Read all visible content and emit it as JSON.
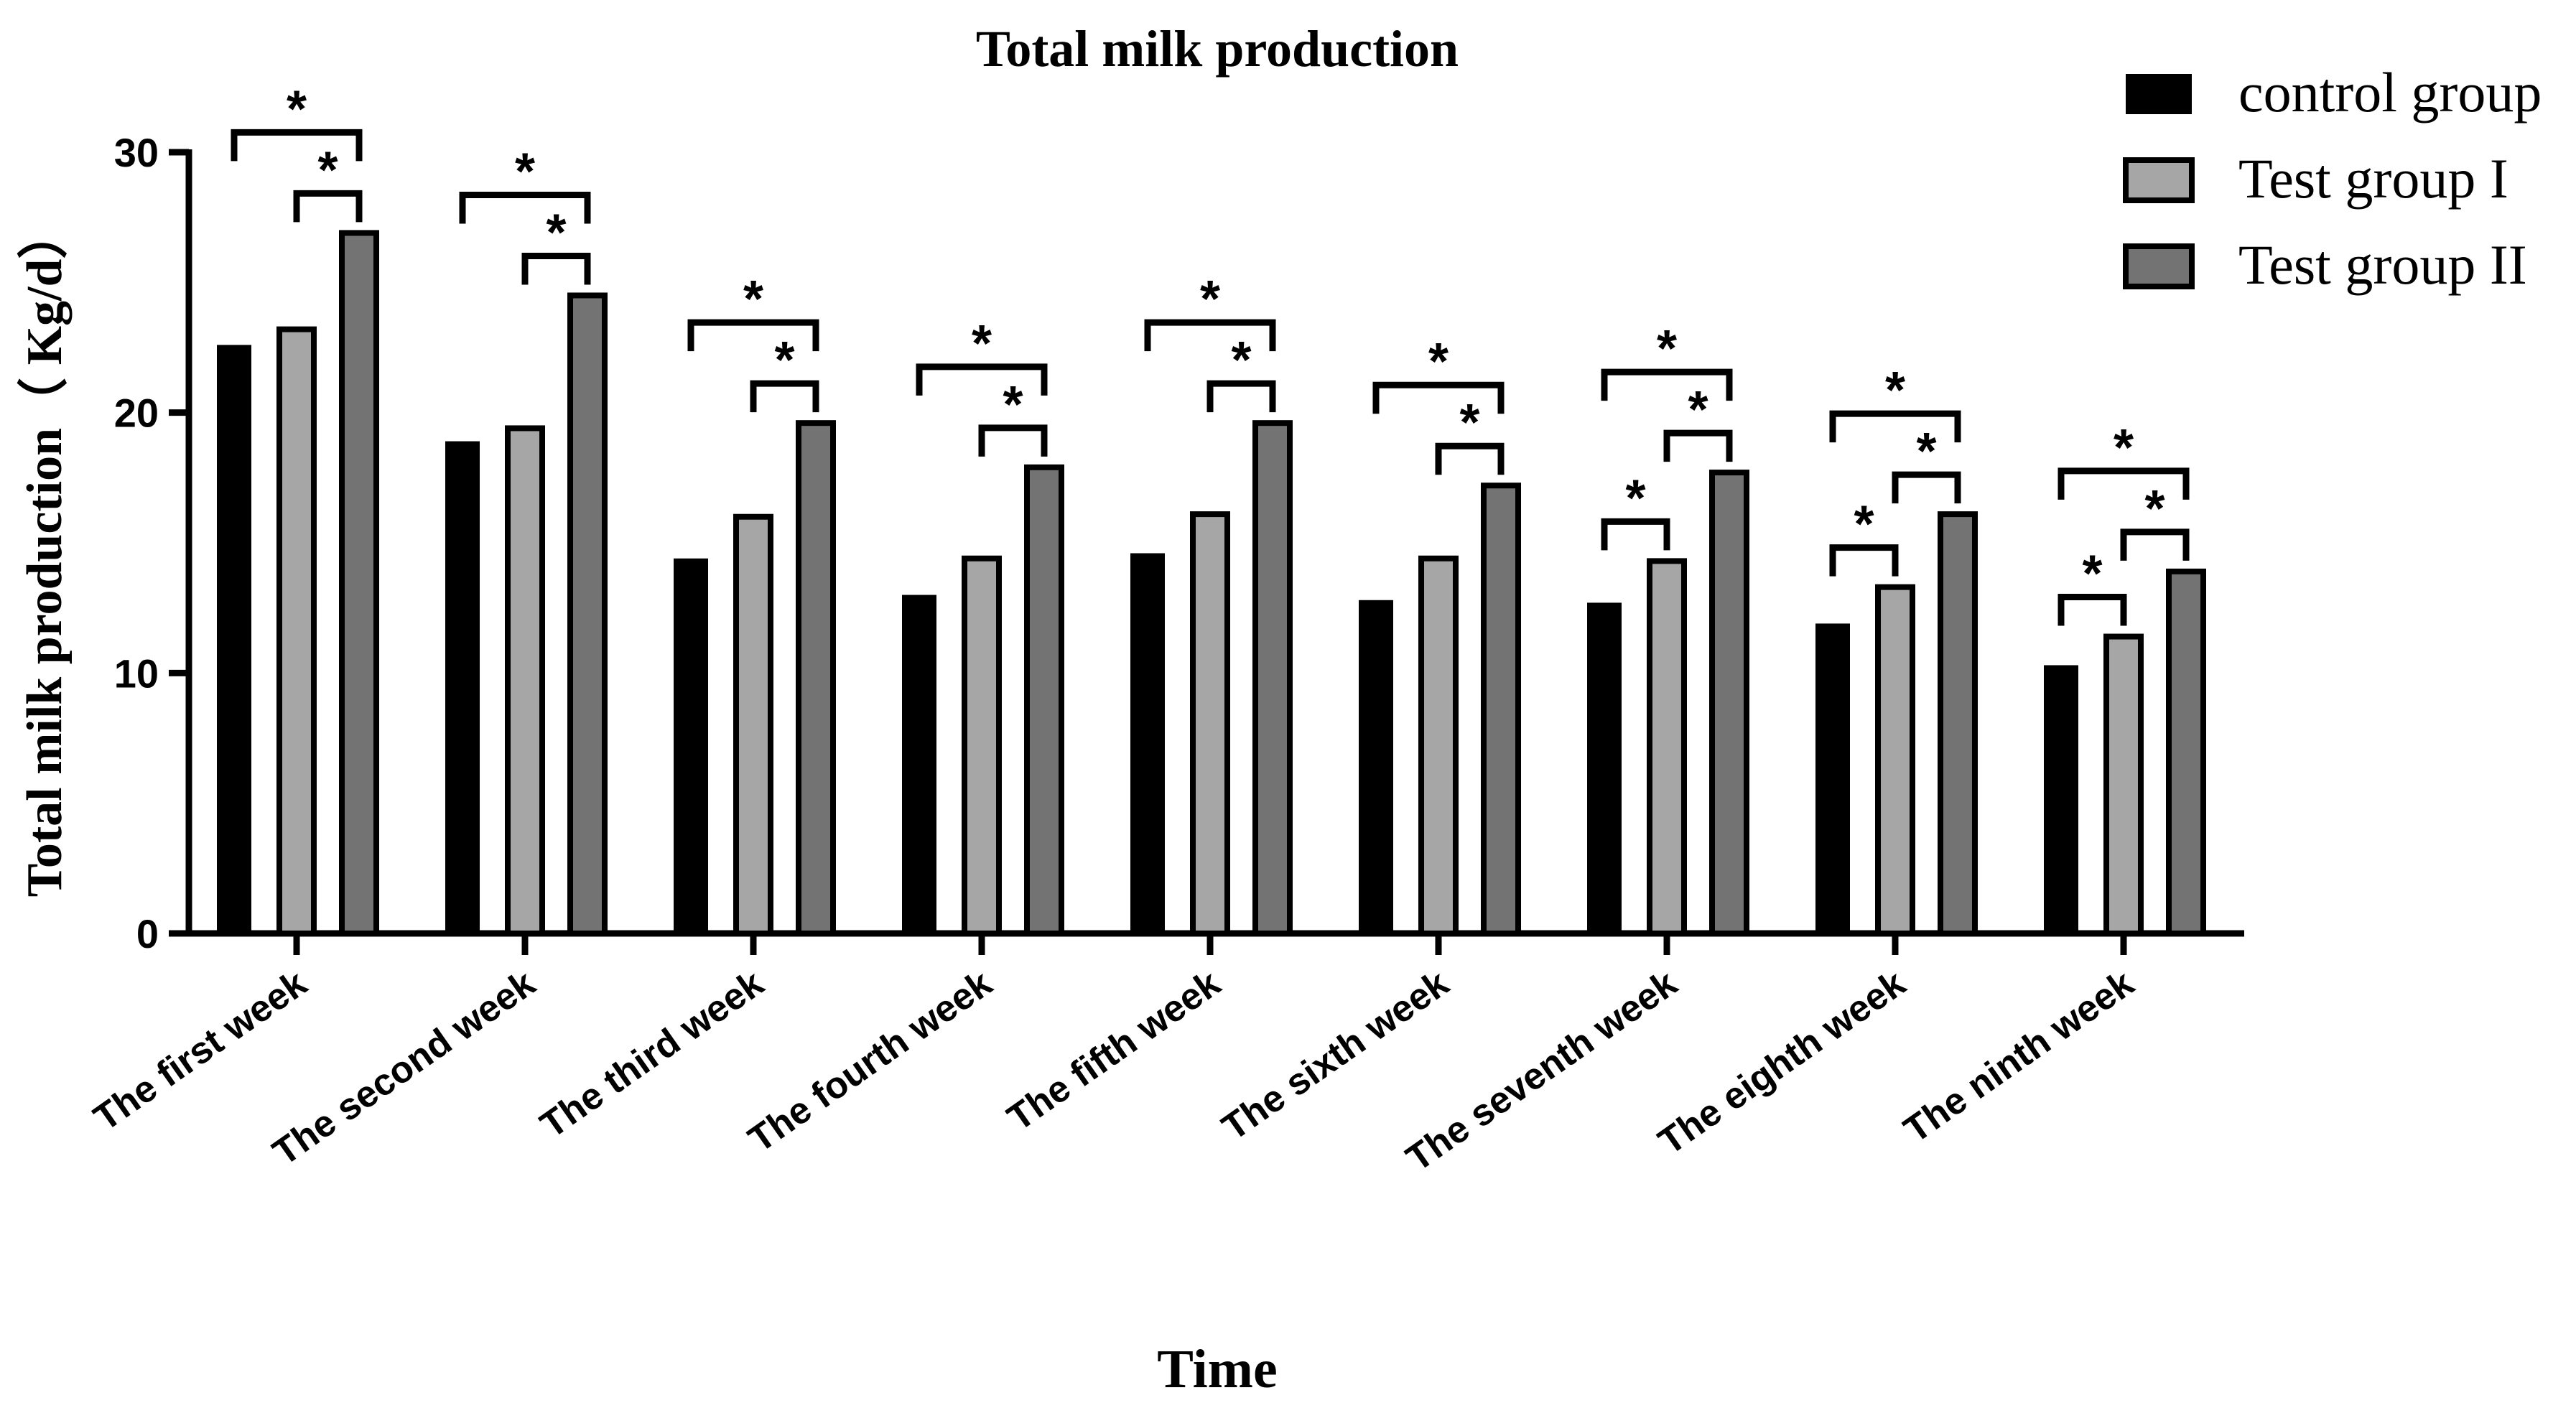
{
  "chart_data": {
    "type": "bar",
    "title": "Total milk production",
    "xlabel": "Time",
    "ylabel": "Total milk production（ Kg/d）",
    "ylim": [
      0,
      30
    ],
    "yticks": [
      "0",
      "10",
      "20",
      "30"
    ],
    "ytick_values": [
      0,
      10,
      20,
      30
    ],
    "categories": [
      "The first week",
      "The second week",
      "The third week",
      "The fourth week",
      "The fifth week",
      "The sixth week",
      "The seventh week",
      "The eighth week",
      "The ninth week"
    ],
    "series": [
      {
        "name": "control group",
        "color": "#000000",
        "values": [
          22.6,
          18.9,
          14.4,
          13.0,
          14.6,
          12.8,
          12.7,
          11.9,
          10.3
        ]
      },
      {
        "name": "Test group I",
        "color": "#a6a6a6",
        "values": [
          23.2,
          19.4,
          16.0,
          14.4,
          16.1,
          14.4,
          14.3,
          13.3,
          11.4
        ]
      },
      {
        "name": "Test group II",
        "color": "#737373",
        "values": [
          26.9,
          24.5,
          19.6,
          17.9,
          19.6,
          17.2,
          17.7,
          16.1,
          13.9
        ]
      }
    ],
    "significance": [
      {
        "category": 0,
        "pairs": [
          {
            "from": 0,
            "to": 2,
            "label": "*"
          },
          {
            "from": 1,
            "to": 2,
            "label": "*"
          }
        ]
      },
      {
        "category": 1,
        "pairs": [
          {
            "from": 0,
            "to": 2,
            "label": "*"
          },
          {
            "from": 1,
            "to": 2,
            "label": "*"
          }
        ]
      },
      {
        "category": 2,
        "pairs": [
          {
            "from": 0,
            "to": 2,
            "label": "*"
          },
          {
            "from": 1,
            "to": 2,
            "label": "*"
          }
        ]
      },
      {
        "category": 3,
        "pairs": [
          {
            "from": 0,
            "to": 2,
            "label": "*"
          },
          {
            "from": 1,
            "to": 2,
            "label": "*"
          }
        ]
      },
      {
        "category": 4,
        "pairs": [
          {
            "from": 0,
            "to": 2,
            "label": "*"
          },
          {
            "from": 1,
            "to": 2,
            "label": "*"
          }
        ]
      },
      {
        "category": 5,
        "pairs": [
          {
            "from": 0,
            "to": 2,
            "label": "*"
          },
          {
            "from": 1,
            "to": 2,
            "label": "*"
          }
        ]
      },
      {
        "category": 6,
        "pairs": [
          {
            "from": 0,
            "to": 2,
            "label": "*"
          },
          {
            "from": 1,
            "to": 2,
            "label": "*"
          },
          {
            "from": 0,
            "to": 1,
            "label": "*"
          }
        ]
      },
      {
        "category": 7,
        "pairs": [
          {
            "from": 0,
            "to": 2,
            "label": "*"
          },
          {
            "from": 1,
            "to": 2,
            "label": "*"
          },
          {
            "from": 0,
            "to": 1,
            "label": "*"
          }
        ]
      },
      {
        "category": 8,
        "pairs": [
          {
            "from": 0,
            "to": 2,
            "label": "*"
          },
          {
            "from": 1,
            "to": 2,
            "label": "*"
          },
          {
            "from": 0,
            "to": 1,
            "label": "*"
          }
        ]
      }
    ],
    "legend": {
      "position": "top-right"
    },
    "grid": false
  }
}
